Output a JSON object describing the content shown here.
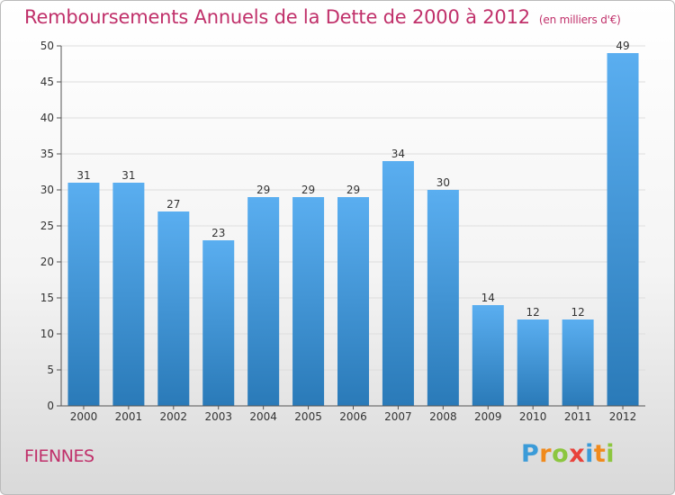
{
  "title": "Remboursements Annuels de la Dette de 2000 à 2012",
  "unit": "(en milliers d'€)",
  "commune": "FIENNES",
  "logo": {
    "text": "Proxiti",
    "letters": [
      {
        "ch": "P",
        "color": "#3b9bd8"
      },
      {
        "ch": "r",
        "color": "#f08a1c"
      },
      {
        "ch": "o",
        "color": "#8cc63f"
      },
      {
        "ch": "x",
        "color": "#e8433b"
      },
      {
        "ch": "i",
        "color": "#3b9bd8"
      },
      {
        "ch": "t",
        "color": "#f08a1c"
      },
      {
        "ch": "i",
        "color": "#8cc63f"
      }
    ]
  },
  "colors": {
    "bar_top": "#5aaef0",
    "bar_bottom": "#2a7ab8",
    "title": "#c0306a"
  },
  "chart_data": {
    "type": "bar",
    "title": "Remboursements Annuels de la Dette de 2000 à 2012",
    "categories": [
      "2000",
      "2001",
      "2002",
      "2003",
      "2004",
      "2005",
      "2006",
      "2007",
      "2008",
      "2009",
      "2010",
      "2011",
      "2012"
    ],
    "values": [
      31,
      31,
      27,
      23,
      29,
      29,
      29,
      34,
      30,
      14,
      12,
      12,
      49
    ],
    "ylim": [
      0,
      50
    ],
    "yticks": [
      0,
      5,
      10,
      15,
      20,
      25,
      30,
      35,
      40,
      45,
      50
    ],
    "grid": true,
    "data_labels": true
  }
}
